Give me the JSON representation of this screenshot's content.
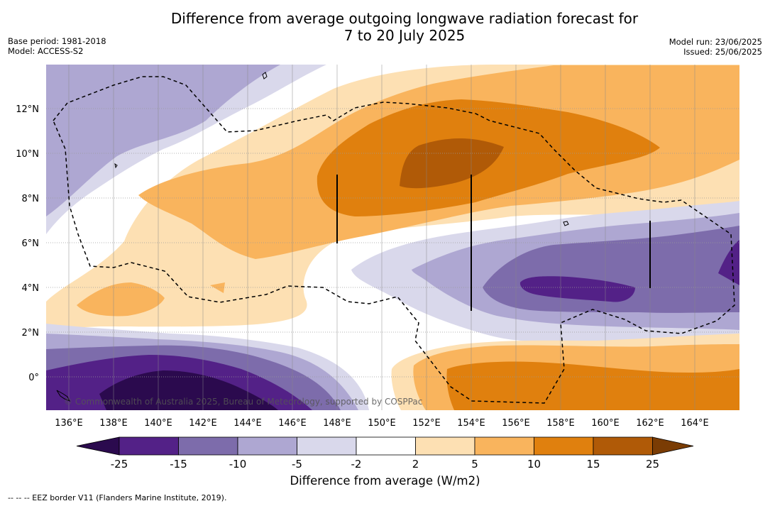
{
  "title_line1": "Difference from average outgoing longwave radiation forecast for",
  "title_line2": "7 to 20 July 2025",
  "base_period": "Base period: 1981-2018",
  "model": "Model: ACCESS-S2",
  "model_run": "Model run: 23/06/2025",
  "issued": "Issued: 25/06/2025",
  "copyright": "© Commonwealth of Australia 2025, Bureau of Meteorology, supported by COSPPac",
  "lon_labels": [
    "136°E",
    "138°E",
    "140°E",
    "142°E",
    "144°E",
    "146°E",
    "148°E",
    "150°E",
    "152°E",
    "154°E",
    "156°E",
    "158°E",
    "160°E",
    "162°E",
    "164°E"
  ],
  "lat_labels": [
    "12°N",
    "10°N",
    "8°N",
    "6°N",
    "4°N",
    "2°N",
    "0°"
  ],
  "colorbar": {
    "ticks": [
      "-25",
      "-15",
      "-10",
      "-5",
      "-2",
      "2",
      "5",
      "10",
      "15",
      "25"
    ],
    "colors": [
      "#2b0a4e",
      "#532187",
      "#7d6cab",
      "#aea7d2",
      "#d9d8eb",
      "#ffffff",
      "#fde0b3",
      "#f9b45d",
      "#e0800e",
      "#b05a07",
      "#7a3c04"
    ],
    "label": "Difference from average (W/m2)"
  },
  "legend_note": "--  --  -- EEZ border V11 (Flanders Marine Institute, 2019)."
}
